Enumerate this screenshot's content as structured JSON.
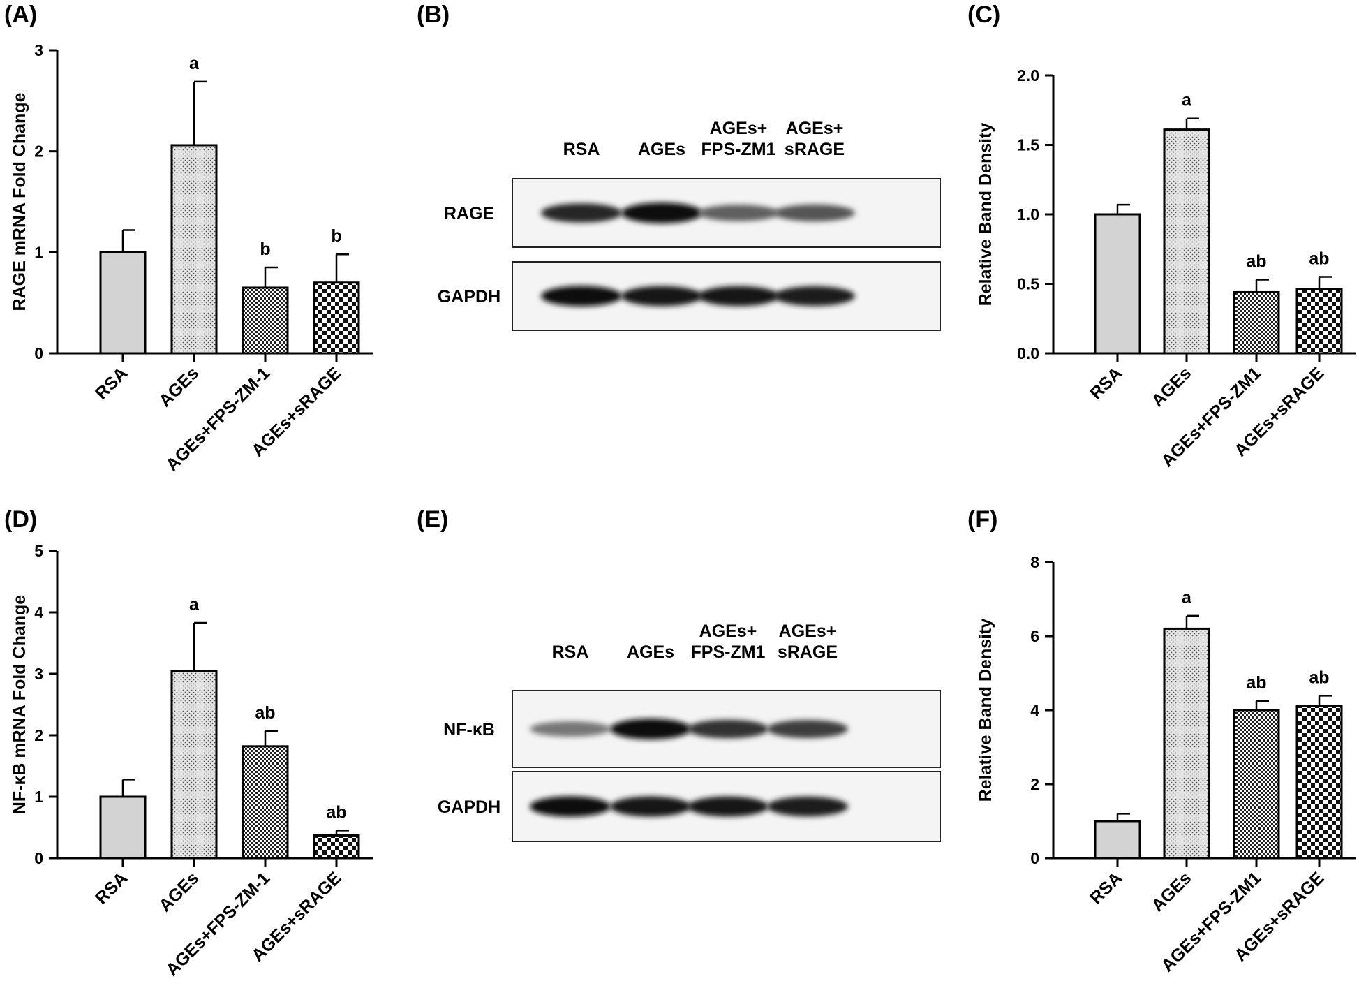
{
  "panels": {
    "A": "(A)",
    "B": "(B)",
    "C": "(C)",
    "D": "(D)",
    "E": "(E)",
    "F": "(F)"
  },
  "chart_data": [
    {
      "id": "A",
      "type": "bar",
      "ylabel": "RAGE mRNA Fold Change",
      "ylim": [
        0,
        3
      ],
      "yticks": [
        "0",
        "1",
        "2",
        "3"
      ],
      "categories": [
        "RSA",
        "AGEs",
        "AGEs+FPS-ZM-1",
        "AGEs+sRAGE"
      ],
      "values": [
        1.0,
        2.06,
        0.65,
        0.7
      ],
      "errors": [
        0.22,
        0.63,
        0.2,
        0.28
      ],
      "significance": [
        "",
        "a",
        "b",
        "b"
      ],
      "grid": false
    },
    {
      "id": "C",
      "type": "bar",
      "ylabel": "Relative Band Density",
      "ylim": [
        0,
        2.0
      ],
      "yticks": [
        "0.0",
        "0.5",
        "1.0",
        "1.5",
        "2.0"
      ],
      "categories": [
        "RSA",
        "AGEs",
        "AGEs+FPS-ZM1",
        "AGEs+sRAGE"
      ],
      "values": [
        1.0,
        1.61,
        0.44,
        0.46
      ],
      "errors": [
        0.07,
        0.08,
        0.09,
        0.09
      ],
      "significance": [
        "",
        "a",
        "ab",
        "ab"
      ],
      "grid": false
    },
    {
      "id": "D",
      "type": "bar",
      "ylabel": "NF-κB mRNA Fold Change",
      "ylim": [
        0,
        5
      ],
      "yticks": [
        "0",
        "1",
        "2",
        "3",
        "4",
        "5"
      ],
      "categories": [
        "RSA",
        "AGEs",
        "AGEs+FPS-ZM-1",
        "AGEs+sRAGE"
      ],
      "values": [
        1.0,
        3.04,
        1.82,
        0.37
      ],
      "errors": [
        0.28,
        0.79,
        0.25,
        0.08
      ],
      "significance": [
        "",
        "a",
        "ab",
        "ab"
      ],
      "grid": false
    },
    {
      "id": "F",
      "type": "bar",
      "ylabel": "Relative Band Density",
      "ylim": [
        0,
        8
      ],
      "yticks": [
        "0",
        "2",
        "4",
        "6",
        "8"
      ],
      "categories": [
        "RSA",
        "AGEs",
        "AGEs+FPS-ZM1",
        "AGEs+sRAGE"
      ],
      "values": [
        1.0,
        6.2,
        4.0,
        4.12
      ],
      "errors": [
        0.2,
        0.35,
        0.25,
        0.27
      ],
      "significance": [
        "",
        "a",
        "ab",
        "ab"
      ],
      "grid": false
    }
  ],
  "blots": [
    {
      "id": "B",
      "lanes": [
        [
          "RSA"
        ],
        [
          "AGEs"
        ],
        [
          "AGEs+",
          "FPS-ZM1"
        ],
        [
          "AGEs+",
          "sRAGE"
        ]
      ],
      "rows": [
        {
          "label": "RAGE",
          "intensity": [
            0.85,
            0.98,
            0.6,
            0.65
          ]
        },
        {
          "label": "GAPDH",
          "intensity": [
            0.95,
            0.92,
            0.92,
            0.9
          ]
        }
      ]
    },
    {
      "id": "E",
      "lanes": [
        [
          "RSA"
        ],
        [
          "AGEs"
        ],
        [
          "AGEs+",
          "FPS-ZM1"
        ],
        [
          "AGEs+",
          "sRAGE"
        ]
      ],
      "rows": [
        {
          "label": "NF-κB",
          "intensity": [
            0.5,
            0.98,
            0.8,
            0.75
          ]
        },
        {
          "label": "GAPDH",
          "intensity": [
            0.95,
            0.93,
            0.92,
            0.9
          ]
        }
      ]
    }
  ]
}
